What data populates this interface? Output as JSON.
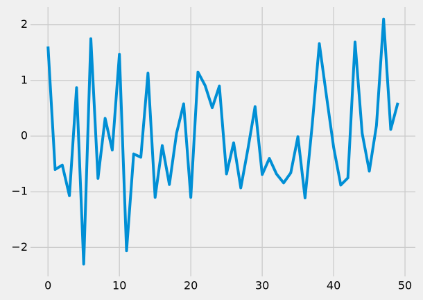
{
  "chart_data": {
    "type": "line",
    "x": [
      0,
      1,
      2,
      3,
      4,
      5,
      6,
      7,
      8,
      9,
      10,
      11,
      12,
      13,
      14,
      15,
      16,
      17,
      18,
      19,
      20,
      21,
      22,
      23,
      24,
      25,
      26,
      27,
      28,
      29,
      30,
      31,
      32,
      33,
      34,
      35,
      36,
      37,
      38,
      39,
      40,
      41,
      42,
      43,
      44,
      45,
      46,
      47,
      48,
      49
    ],
    "series": [
      {
        "color": "#008fd5",
        "values": [
          1.61,
          -0.6,
          -0.52,
          -1.07,
          0.87,
          -2.3,
          1.75,
          -0.76,
          0.32,
          -0.25,
          1.47,
          -2.06,
          -0.32,
          -0.38,
          1.13,
          -1.1,
          -0.17,
          -0.87,
          0.05,
          0.58,
          -1.1,
          1.15,
          0.91,
          0.51,
          0.9,
          -0.68,
          -0.12,
          -0.93,
          -0.23,
          0.53,
          -0.69,
          -0.4,
          -0.68,
          -0.84,
          -0.66,
          -0.01,
          -1.11,
          0.2,
          1.66,
          0.72,
          -0.2,
          -0.88,
          -0.75,
          1.69,
          0.05,
          -0.63,
          0.19,
          2.1,
          0.12,
          0.6
        ]
      }
    ],
    "xlim": [
      -2.45,
      51.45
    ],
    "ylim": [
      -2.52,
      2.32
    ],
    "xticks": [
      0,
      10,
      20,
      30,
      40,
      50
    ],
    "yticks": [
      {
        "value": -2,
        "label": "−2"
      },
      {
        "value": -1,
        "label": "−1"
      },
      0,
      1,
      2
    ],
    "grid": true
  }
}
